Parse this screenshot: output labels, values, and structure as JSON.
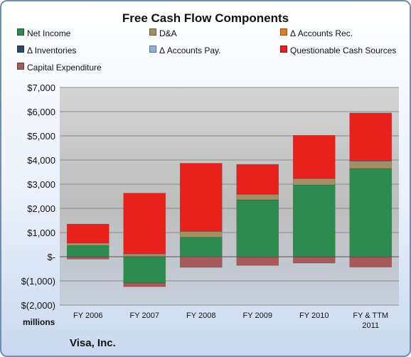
{
  "chart_data": {
    "type": "bar",
    "stacked": true,
    "title": "Free Cash Flow Components",
    "categories": [
      "FY 2006",
      "FY 2007",
      "FY 2008",
      "FY 2009",
      "FY 2010",
      "FY & TTM 2011"
    ],
    "category_lines": [
      [
        "FY 2006"
      ],
      [
        "FY 2007"
      ],
      [
        "FY 2008"
      ],
      [
        "FY 2009"
      ],
      [
        "FY 2010"
      ],
      [
        "FY & TTM",
        "2011"
      ]
    ],
    "ylabel": "millions",
    "ylim": [
      -2000,
      7000
    ],
    "yticks": [
      -2000,
      -1000,
      0,
      1000,
      2000,
      3000,
      4000,
      5000,
      6000,
      7000
    ],
    "ytick_labels": [
      "$(2,000)",
      "$(1,000)",
      "$-",
      "$1,000",
      "$2,000",
      "$3,000",
      "$4,000",
      "$5,000",
      "$6,000",
      "$7,000"
    ],
    "grid": true,
    "legend_position": "top",
    "series": [
      {
        "name": "Net Income",
        "color": "#2e8b4f",
        "values": [
          455,
          -1076,
          804,
          2353,
          2966,
          3650
        ]
      },
      {
        "name": "D&A",
        "color": "#a09064",
        "values": [
          121,
          117,
          237,
          226,
          265,
          300
        ]
      },
      {
        "name": "Δ Accounts Rec.",
        "color": "#e07b22",
        "values": [
          -20,
          -15,
          10,
          -30,
          -25,
          -30
        ]
      },
      {
        "name": "Δ Inventories",
        "color": "#2e4a6b",
        "values": [
          0,
          0,
          0,
          0,
          0,
          0
        ]
      },
      {
        "name": "Δ Accounts Pay.",
        "color": "#8fb0d8",
        "values": [
          5,
          10,
          15,
          10,
          10,
          15
        ]
      },
      {
        "name": "Questionable Cash Sources",
        "color": "#e8211c",
        "values": [
          770,
          2500,
          2800,
          1230,
          1780,
          1980
        ]
      },
      {
        "name": "Capital Expenditure",
        "color": "#a85a5a",
        "values": [
          -80,
          -150,
          -440,
          -330,
          -240,
          -400
        ]
      }
    ]
  },
  "footer": {
    "company": "Visa, Inc."
  }
}
